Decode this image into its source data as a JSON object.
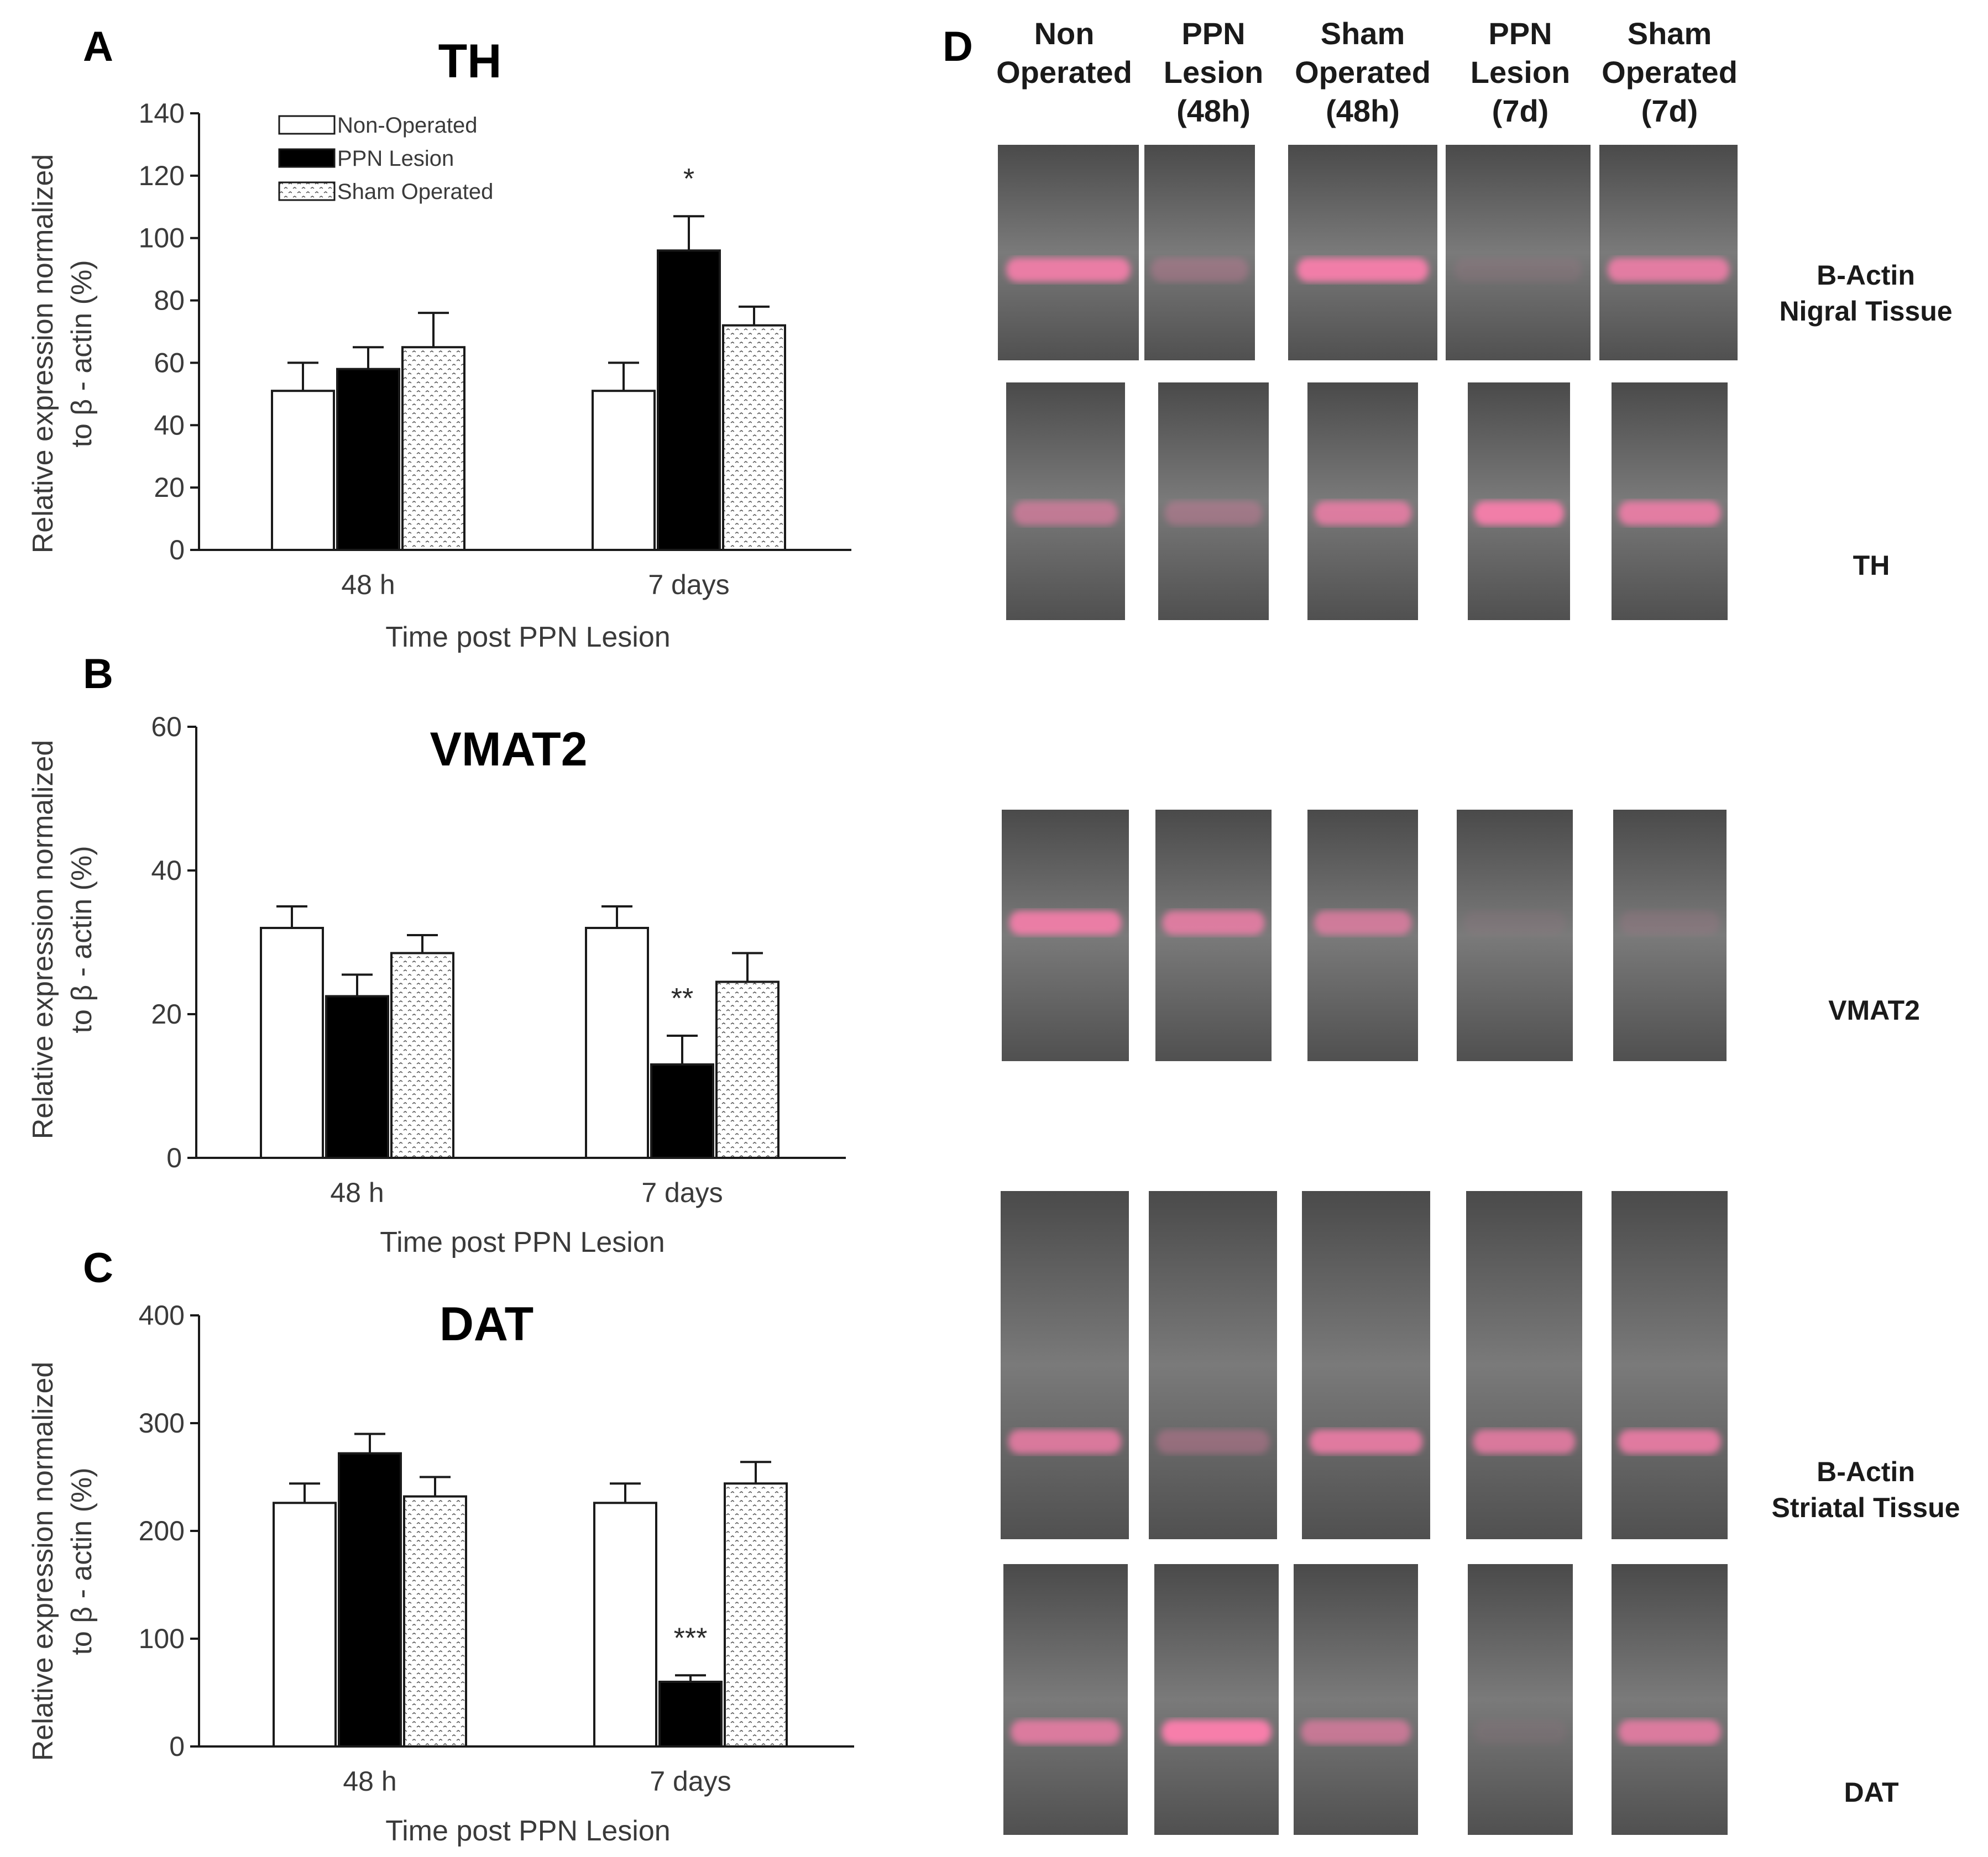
{
  "chart_data": [
    {
      "panel": "A",
      "type": "bar",
      "title": "TH",
      "ylabel_line1": "Relative expression normalized",
      "ylabel_line2": "to β - actin (%)",
      "xlabel": "Time post PPN Lesion",
      "ylim": [
        0,
        140
      ],
      "yticks": [
        0,
        20,
        40,
        60,
        80,
        100,
        120,
        140
      ],
      "categories": [
        "48 h",
        "7 days"
      ],
      "series": [
        {
          "name": "Non-Operated",
          "values": [
            51,
            51
          ],
          "errors": [
            9,
            9
          ]
        },
        {
          "name": "PPN Lesion",
          "values": [
            58,
            96
          ],
          "errors": [
            7,
            11
          ]
        },
        {
          "name": "Sham Operated",
          "values": [
            65,
            72
          ],
          "errors": [
            11,
            6
          ]
        }
      ],
      "significance": [
        {
          "category": "7 days",
          "series": "PPN Lesion",
          "label": "*"
        }
      ],
      "legend": [
        "Non-Operated",
        "PPN Lesion",
        "Sham Operated"
      ]
    },
    {
      "panel": "B",
      "type": "bar",
      "title": "VMAT2",
      "ylabel_line1": "Relative expression normalized",
      "ylabel_line2": "to β - actin (%)",
      "xlabel": "Time post PPN Lesion",
      "ylim": [
        0,
        60
      ],
      "yticks": [
        0,
        20,
        40,
        60
      ],
      "categories": [
        "48 h",
        "7 days"
      ],
      "series": [
        {
          "name": "Non-Operated",
          "values": [
            32,
            32
          ],
          "errors": [
            3,
            3
          ]
        },
        {
          "name": "PPN Lesion",
          "values": [
            22.5,
            13
          ],
          "errors": [
            3,
            4
          ]
        },
        {
          "name": "Sham Operated",
          "values": [
            28.5,
            24.5
          ],
          "errors": [
            2.5,
            4
          ]
        }
      ],
      "significance": [
        {
          "category": "7 days",
          "series": "PPN Lesion",
          "label": "**"
        }
      ]
    },
    {
      "panel": "C",
      "type": "bar",
      "title": "DAT",
      "ylabel_line1": "Relative expression normalized",
      "ylabel_line2": "to β - actin (%)",
      "xlabel": "Time post PPN Lesion",
      "ylim": [
        0,
        400
      ],
      "yticks": [
        0,
        100,
        200,
        300,
        400
      ],
      "categories": [
        "48 h",
        "7 days"
      ],
      "series": [
        {
          "name": "Non-Operated",
          "values": [
            226,
            226
          ],
          "errors": [
            18,
            18
          ]
        },
        {
          "name": "PPN Lesion",
          "values": [
            272,
            60
          ],
          "errors": [
            18,
            6
          ]
        },
        {
          "name": "Sham Operated",
          "values": [
            232,
            244
          ],
          "errors": [
            18,
            20
          ]
        }
      ],
      "significance": [
        {
          "category": "7 days",
          "series": "PPN Lesion",
          "label": "***"
        }
      ]
    }
  ],
  "panel_d": {
    "letter": "D",
    "lanes": [
      {
        "line1": "Non",
        "line2": "Operated",
        "line3": ""
      },
      {
        "line1": "PPN",
        "line2": "Lesion",
        "line3": "(48h)"
      },
      {
        "line1": "Sham",
        "line2": "Operated",
        "line3": "(48h)"
      },
      {
        "line1": "PPN",
        "line2": "Lesion",
        "line3": "(7d)"
      },
      {
        "line1": "Sham",
        "line2": "Operated",
        "line3": "(7d)"
      }
    ],
    "rows": [
      {
        "name": "bactin-nigral",
        "label_line1": "B-Actin",
        "label_line2": "Nigral Tissue"
      },
      {
        "name": "th",
        "label_line1": "TH",
        "label_line2": ""
      },
      {
        "name": "vmat2",
        "label_line1": "VMAT2",
        "label_line2": ""
      },
      {
        "name": "bactin-striatal",
        "label_line1": "B-Actin",
        "label_line2": "Striatal Tissue"
      },
      {
        "name": "dat",
        "label_line1": "DAT",
        "label_line2": ""
      }
    ],
    "band_intensity": [
      [
        0.85,
        0.25,
        0.9,
        0.08,
        0.8
      ],
      [
        0.55,
        0.3,
        0.75,
        0.9,
        0.8
      ],
      [
        0.85,
        0.75,
        0.65,
        0.05,
        0.1
      ],
      [
        0.75,
        0.3,
        0.8,
        0.75,
        0.8
      ],
      [
        0.75,
        0.95,
        0.6,
        0.05,
        0.75
      ]
    ]
  },
  "colors": {
    "bar_outline": "#1a1a1a",
    "lesion_fill": "#000000",
    "gel_base": "#6a6a6a",
    "band_pink": "#ff7fae"
  }
}
